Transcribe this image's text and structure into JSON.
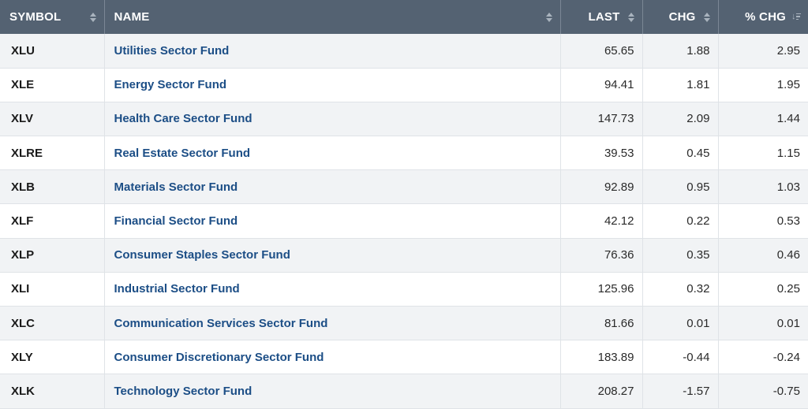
{
  "columns": {
    "symbol": "SYMBOL",
    "name": "NAME",
    "last": "LAST",
    "chg": "CHG",
    "pct_chg": "% CHG"
  },
  "sort": {
    "column": "pct_chg",
    "direction": "descending"
  },
  "rows": [
    {
      "symbol": "XLU",
      "name": "Utilities Sector Fund",
      "last": "65.65",
      "chg": "1.88",
      "pct": "2.95"
    },
    {
      "symbol": "XLE",
      "name": "Energy Sector Fund",
      "last": "94.41",
      "chg": "1.81",
      "pct": "1.95"
    },
    {
      "symbol": "XLV",
      "name": "Health Care Sector Fund",
      "last": "147.73",
      "chg": "2.09",
      "pct": "1.44"
    },
    {
      "symbol": "XLRE",
      "name": "Real Estate Sector Fund",
      "last": "39.53",
      "chg": "0.45",
      "pct": "1.15"
    },
    {
      "symbol": "XLB",
      "name": "Materials Sector Fund",
      "last": "92.89",
      "chg": "0.95",
      "pct": "1.03"
    },
    {
      "symbol": "XLF",
      "name": "Financial Sector Fund",
      "last": "42.12",
      "chg": "0.22",
      "pct": "0.53"
    },
    {
      "symbol": "XLP",
      "name": "Consumer Staples Sector Fund",
      "last": "76.36",
      "chg": "0.35",
      "pct": "0.46"
    },
    {
      "symbol": "XLI",
      "name": "Industrial Sector Fund",
      "last": "125.96",
      "chg": "0.32",
      "pct": "0.25"
    },
    {
      "symbol": "XLC",
      "name": "Communication Services Sector Fund",
      "last": "81.66",
      "chg": "0.01",
      "pct": "0.01"
    },
    {
      "symbol": "XLY",
      "name": "Consumer Discretionary Sector Fund",
      "last": "183.89",
      "chg": "-0.44",
      "pct": "-0.24"
    },
    {
      "symbol": "XLK",
      "name": "Technology Sector Fund",
      "last": "208.27",
      "chg": "-1.57",
      "pct": "-0.75"
    }
  ]
}
